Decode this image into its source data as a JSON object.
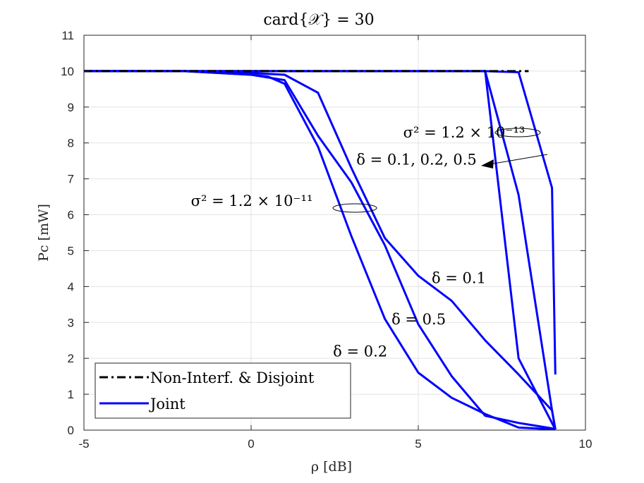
{
  "chart_data": {
    "type": "line",
    "title": "card{𝒳} = 30",
    "xlabel": "ρ [dB]",
    "ylabel": "Pc [mW]",
    "xlim": [
      -5,
      10
    ],
    "ylim": [
      0,
      11
    ],
    "xticks": [
      "-5",
      "0",
      "5",
      "10"
    ],
    "yticks": [
      "0",
      "1",
      "2",
      "3",
      "4",
      "5",
      "6",
      "7",
      "8",
      "9",
      "10",
      "11"
    ],
    "grid": true,
    "legend": {
      "placement": "bottom-left",
      "entries": [
        {
          "label": "Non-Interf. & Disjoint",
          "style": "dashdot",
          "color": "#000000"
        },
        {
          "label": "Joint",
          "style": "solid",
          "color": "#0000ff"
        }
      ]
    },
    "series": [
      {
        "style": "dashdot",
        "color": "#000000",
        "x": [
          -5,
          8.3
        ],
        "y": [
          10,
          10
        ]
      },
      {
        "style": "solid",
        "color": "#0000ff",
        "x": [
          -5,
          -2,
          0,
          1,
          2,
          3,
          4,
          5,
          6,
          7,
          8,
          9,
          9.1
        ],
        "y": [
          10,
          10,
          9.95,
          9.9,
          9.4,
          7.3,
          5.35,
          4.3,
          3.6,
          2.5,
          1.55,
          0.55,
          0.02
        ]
      },
      {
        "style": "solid",
        "color": "#0000ff",
        "x": [
          -5,
          -2,
          0,
          1,
          2,
          3,
          4,
          5,
          6,
          7,
          8,
          9,
          9.1
        ],
        "y": [
          10,
          10,
          9.9,
          9.75,
          8.2,
          6.9,
          5.15,
          2.95,
          1.5,
          0.4,
          0.2,
          0.05,
          0.02
        ]
      },
      {
        "style": "solid",
        "color": "#0000ff",
        "x": [
          -5,
          -2,
          0,
          0.5,
          1,
          2,
          3,
          4,
          5,
          6,
          7,
          8,
          9.1
        ],
        "y": [
          10,
          10,
          9.9,
          9.85,
          9.65,
          7.9,
          5.4,
          3.1,
          1.6,
          0.9,
          0.45,
          0.07,
          0.02
        ]
      },
      {
        "style": "solid",
        "color": "#0000ff",
        "x": [
          -5,
          7,
          8,
          9,
          9.1
        ],
        "y": [
          10,
          10,
          9.97,
          6.75,
          1.55
        ]
      },
      {
        "style": "solid",
        "color": "#0000ff",
        "x": [
          -5,
          7,
          8,
          9.1
        ],
        "y": [
          10,
          10,
          2.0,
          0.02
        ]
      },
      {
        "style": "solid",
        "color": "#0000ff",
        "x": [
          -5,
          7,
          8,
          9,
          9.1
        ],
        "y": [
          10,
          10,
          6.55,
          0.55,
          0.02
        ]
      }
    ],
    "annotations": [
      {
        "text": "σ² = 1.2 × 10⁻¹³",
        "x": 4.55,
        "y": 8.15
      },
      {
        "text": "δ = 0.1, 0.2, 0.5",
        "x": 3.15,
        "y": 7.4
      },
      {
        "text": "σ² = 1.2 × 10⁻¹¹",
        "x": -1.8,
        "y": 6.25
      },
      {
        "text": "δ = 0.1",
        "x": 5.4,
        "y": 4.1
      },
      {
        "text": "δ = 0.5",
        "x": 4.2,
        "y": 2.95
      },
      {
        "text": "δ = 0.2",
        "x": 2.45,
        "y": 2.05
      }
    ]
  }
}
